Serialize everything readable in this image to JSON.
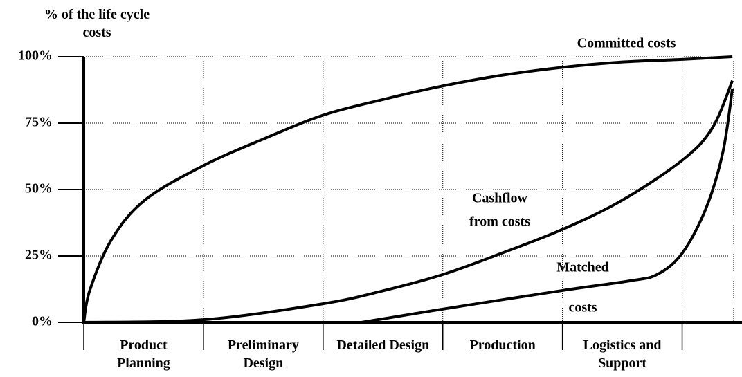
{
  "chart_data": {
    "type": "line",
    "ylabel": "% of the life cycle costs",
    "categories": [
      "Product Planning",
      "Preliminary Design",
      "Detailed Design",
      "Production",
      "Logistics and Support"
    ],
    "xlim": [
      0,
      5.5
    ],
    "xticks": [
      0,
      1,
      2,
      3,
      4,
      5
    ],
    "ylim": [
      0,
      100
    ],
    "yticks": [
      {
        "value": 0,
        "label": "0%"
      },
      {
        "value": 25,
        "label": "25%"
      },
      {
        "value": 50,
        "label": "50%"
      },
      {
        "value": 75,
        "label": "75%"
      },
      {
        "value": 100,
        "label": "100%"
      }
    ],
    "grid": true,
    "series": [
      {
        "name": "Committed costs",
        "color": "#000000",
        "x": [
          0,
          0.05,
          0.23,
          0.51,
          1,
          1.5,
          2,
          2.51,
          3,
          3.49,
          4,
          4.5,
          5,
          5.42
        ],
        "values": [
          0,
          12,
          31,
          46,
          59,
          69,
          78,
          84,
          89,
          93,
          96,
          98,
          99,
          100
        ]
      },
      {
        "name": "Cashflow from costs",
        "color": "#000000",
        "x": [
          0,
          1,
          2,
          2.51,
          3,
          3.49,
          4,
          4.5,
          5,
          5.25,
          5.42
        ],
        "values": [
          0,
          1,
          7,
          12,
          18,
          26,
          35,
          46,
          61,
          73,
          91
        ]
      },
      {
        "name": "Matched costs",
        "color": "#000000",
        "x": [
          2.32,
          3,
          4,
          4.56,
          4.79,
          5,
          5.2,
          5.34,
          5.42
        ],
        "values": [
          0,
          5,
          12,
          15.6,
          18,
          26,
          43,
          64,
          88
        ]
      }
    ],
    "annotations": [
      "Committed costs",
      "Cashflow",
      "from costs",
      "Matched",
      "costs"
    ]
  }
}
